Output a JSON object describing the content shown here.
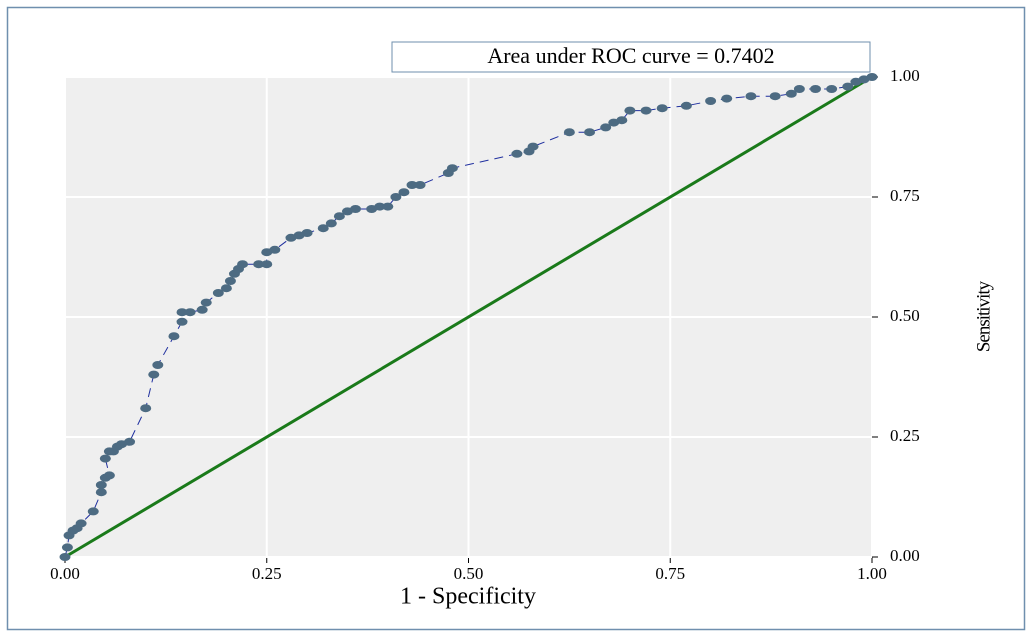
{
  "chart_data": {
    "type": "line",
    "annotation": "Area under ROC curve = 0.7402",
    "xlabel": "1 - Specificity",
    "ylabel": "Sensitivity",
    "xlim": [
      0,
      1
    ],
    "ylim": [
      0,
      1
    ],
    "xticks": [
      {
        "value": 0,
        "label": "0.00"
      },
      {
        "value": 0.25,
        "label": "0.25"
      },
      {
        "value": 0.5,
        "label": "0.50"
      },
      {
        "value": 0.75,
        "label": "0.75"
      },
      {
        "value": 1,
        "label": "1.00"
      }
    ],
    "yticks": [
      {
        "value": 0,
        "label": "0.00"
      },
      {
        "value": 0.25,
        "label": "0.25"
      },
      {
        "value": 0.5,
        "label": "0.50"
      },
      {
        "value": 0.75,
        "label": "0.75"
      },
      {
        "value": 1,
        "label": "1.00"
      }
    ],
    "grid": true,
    "y_axis_side": "right",
    "color": "#1f2f9f",
    "marker_color": "#4d6b82",
    "x": [
      0,
      0.003,
      0.005,
      0.01,
      0.015,
      0.02,
      0.035,
      0.045,
      0.045,
      0.05,
      0.055,
      0.05,
      0.055,
      0.06,
      0.065,
      0.07,
      0.08,
      0.1,
      0.11,
      0.115,
      0.135,
      0.145,
      0.145,
      0.155,
      0.17,
      0.175,
      0.19,
      0.2,
      0.205,
      0.21,
      0.215,
      0.22,
      0.24,
      0.25,
      0.25,
      0.26,
      0.28,
      0.29,
      0.3,
      0.32,
      0.33,
      0.34,
      0.35,
      0.36,
      0.38,
      0.39,
      0.4,
      0.41,
      0.42,
      0.43,
      0.44,
      0.475,
      0.48,
      0.56,
      0.575,
      0.58,
      0.625,
      0.65,
      0.67,
      0.68,
      0.69,
      0.7,
      0.72,
      0.74,
      0.77,
      0.8,
      0.82,
      0.85,
      0.88,
      0.9,
      0.91,
      0.93,
      0.95,
      0.97,
      0.98,
      0.99,
      1
    ],
    "values": [
      0,
      0.02,
      0.045,
      0.055,
      0.06,
      0.07,
      0.095,
      0.135,
      0.15,
      0.165,
      0.17,
      0.205,
      0.22,
      0.22,
      0.23,
      0.235,
      0.24,
      0.31,
      0.38,
      0.4,
      0.46,
      0.49,
      0.51,
      0.51,
      0.515,
      0.53,
      0.55,
      0.56,
      0.575,
      0.59,
      0.6,
      0.61,
      0.61,
      0.61,
      0.635,
      0.64,
      0.665,
      0.67,
      0.675,
      0.685,
      0.695,
      0.71,
      0.72,
      0.725,
      0.725,
      0.73,
      0.73,
      0.75,
      0.76,
      0.775,
      0.775,
      0.8,
      0.81,
      0.84,
      0.845,
      0.855,
      0.885,
      0.885,
      0.895,
      0.905,
      0.91,
      0.93,
      0.93,
      0.935,
      0.94,
      0.95,
      0.955,
      0.96,
      0.96,
      0.965,
      0.975,
      0.975,
      0.975,
      0.98,
      0.99,
      0.995,
      1
    ],
    "reference_line": {
      "x": [
        0,
        1
      ],
      "values": [
        0,
        1
      ],
      "color": "#1a7a1a"
    }
  }
}
